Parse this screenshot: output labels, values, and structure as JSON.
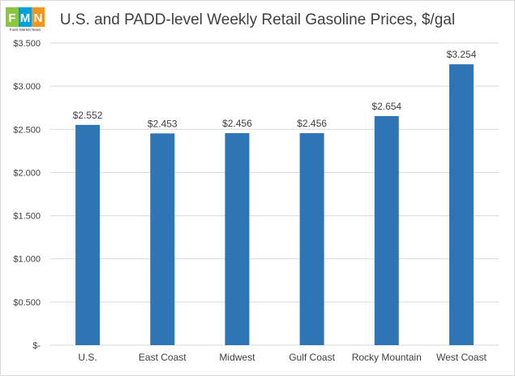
{
  "logo": {
    "letters": [
      "F",
      "M",
      "N"
    ],
    "tagline": "Fuels Market News",
    "colors": [
      "#8cc63f",
      "#00a0dc",
      "#f7941d"
    ]
  },
  "chart_data": {
    "type": "bar",
    "title": "U.S. and PADD-level Weekly Retail Gasoline Prices, $/gal",
    "categories": [
      "U.S.",
      "East Coast",
      "Midwest",
      "Gulf Coast",
      "Rocky Mountain",
      "West Coast"
    ],
    "values": [
      2.552,
      2.453,
      2.456,
      2.456,
      2.654,
      3.254
    ],
    "value_labels": [
      "$2.552",
      "$2.453",
      "$2.456",
      "$2.456",
      "$2.654",
      "$3.254"
    ],
    "ylim": [
      0,
      3.5
    ],
    "yticks": [
      0,
      0.5,
      1.0,
      1.5,
      2.0,
      2.5,
      3.0,
      3.5
    ],
    "ytick_labels": [
      "$-",
      "$0.500",
      "$1.000",
      "$1.500",
      "$2.000",
      "$2.500",
      "$3.000",
      "$3.500"
    ],
    "grid": true,
    "bar_color": "#2e75b6",
    "grid_color": "#d9d9d9"
  }
}
